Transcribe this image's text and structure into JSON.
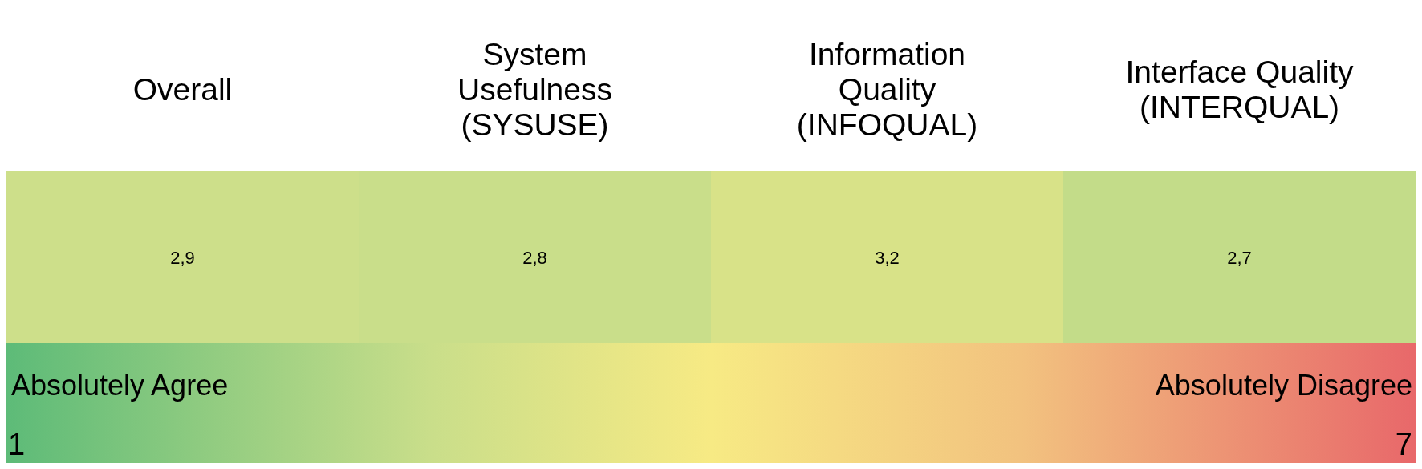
{
  "chart_data": {
    "type": "heatmap",
    "categories": [
      "Overall",
      "System\nUsefulness\n(SYSUSE)",
      "Information\nQuality\n(INFOQUAL)",
      "Interface Quality\n(INTERQUAL)"
    ],
    "y_categories": [
      null
    ],
    "cells": [
      [
        2.9,
        2.8,
        3.2,
        2.7
      ]
    ],
    "cell_labels": [
      [
        "2,9",
        "2,8",
        "3,2",
        "2,7"
      ]
    ],
    "clim": [
      1,
      7
    ],
    "cticks": [
      1,
      7
    ],
    "annotations": [
      "Absolutely Agree",
      "Absolutely Disagree"
    ]
  }
}
